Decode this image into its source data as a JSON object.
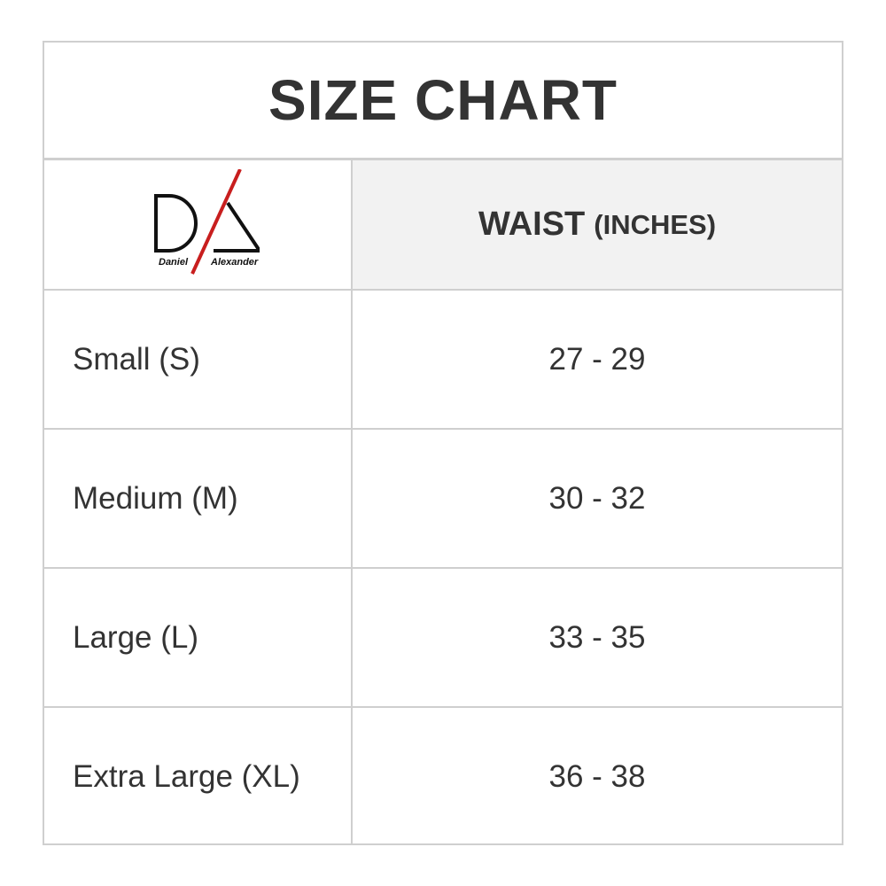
{
  "title": "SIZE CHART",
  "logo": {
    "text_left": "Daniel",
    "text_right": "Alexander",
    "accent_color": "#c81e1e"
  },
  "header": {
    "column": "WAIST",
    "unit": "(INCHES)"
  },
  "rows": [
    {
      "size": "Small (S)",
      "waist": "27 - 29"
    },
    {
      "size": "Medium (M)",
      "waist": "30 - 32"
    },
    {
      "size": "Large (L)",
      "waist": "33 - 35"
    },
    {
      "size": "Extra Large (XL)",
      "waist": "36 - 38"
    }
  ]
}
